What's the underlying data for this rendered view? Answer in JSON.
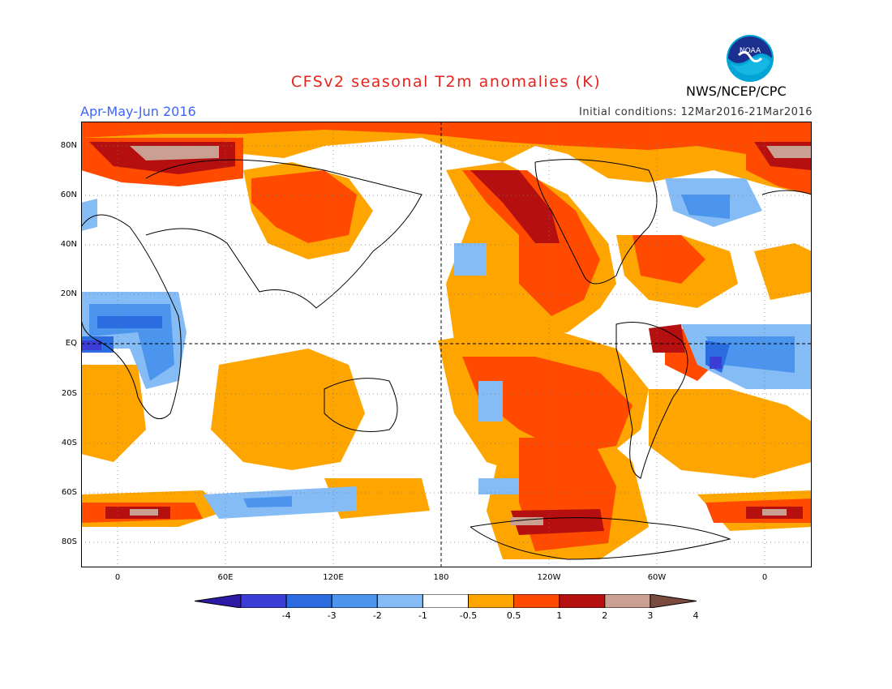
{
  "header": {
    "title": "CFSv2 seasonal T2m anomalies (K)",
    "season": "Apr-May-Jun 2016",
    "initial_conditions": "Initial conditions: 12Mar2016-21Mar2016",
    "agency": "NWS/NCEP/CPC",
    "logo_icon": "noaa-logo-icon"
  },
  "map": {
    "projection": "equirectangular",
    "center": "Pacific",
    "grid": "dotted",
    "lat_labels": [
      "80N",
      "60N",
      "40N",
      "20N",
      "EQ",
      "20S",
      "40S",
      "60S",
      "80S"
    ],
    "lon_labels": [
      "0",
      "60E",
      "120E",
      "180",
      "120W",
      "60W",
      "0"
    ]
  },
  "colorbar": {
    "labels": [
      "-4",
      "-3",
      "-2",
      "-1",
      "-0.5",
      "0.5",
      "1",
      "2",
      "3",
      "4"
    ],
    "colors": [
      "#2c1aa6",
      "#3c3cd6",
      "#2b6de0",
      "#4c95ee",
      "#86bcf5",
      "#ffffff",
      "#ffa500",
      "#ff4a00",
      "#b50f0f",
      "#c9a092",
      "#7a4a3e"
    ]
  }
}
